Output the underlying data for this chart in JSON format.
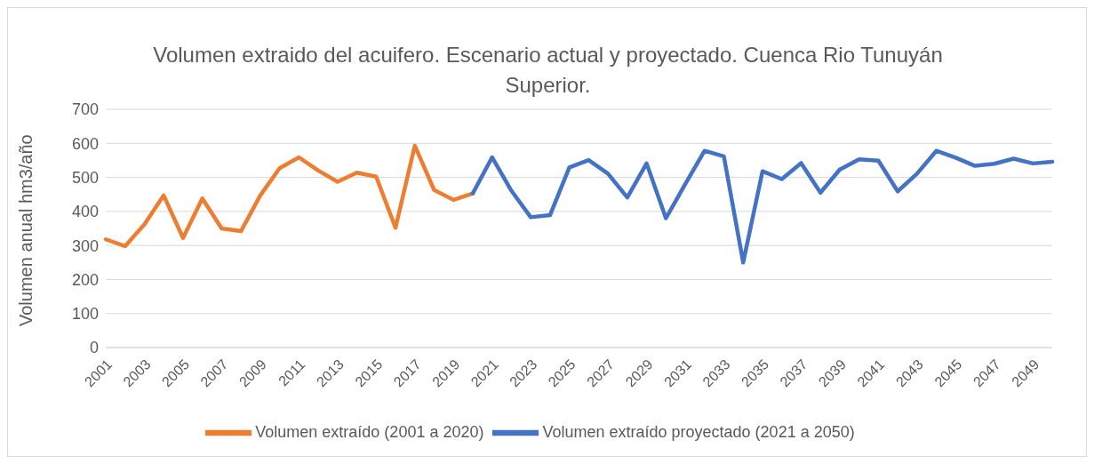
{
  "chart_data": {
    "type": "line",
    "title": "Volumen extraido del acuifero. Escenario actual y proyectado. Cuenca Rio Tunuyán Superior.",
    "ylabel": "Volumen anual hm3/año",
    "categories": [
      "2001",
      null,
      "2003",
      null,
      "2005",
      null,
      "2007",
      null,
      "2009",
      null,
      "2011",
      null,
      "2013",
      null,
      "2015",
      null,
      "2017",
      null,
      "2019",
      null,
      "2021",
      null,
      "2023",
      null,
      "2025",
      null,
      "2027",
      null,
      "2029",
      null,
      "2031",
      null,
      "2033",
      null,
      "2035",
      null,
      "2037",
      null,
      "2039",
      null,
      "2041",
      null,
      "2043",
      null,
      "2045",
      null,
      "2047",
      null,
      "2049",
      null
    ],
    "series": [
      {
        "name": "Volumen extraído (2001 a 2020)",
        "color": "#ed7d31",
        "values": [
          318,
          298,
          362,
          447,
          322,
          438,
          350,
          342,
          447,
          527,
          559,
          520,
          487,
          514,
          502,
          352,
          593,
          463,
          434,
          453,
          null,
          null,
          null,
          null,
          null,
          null,
          null,
          null,
          null,
          null,
          null,
          null,
          null,
          null,
          null,
          null,
          null,
          null,
          null,
          null,
          null,
          null,
          null,
          null,
          null,
          null,
          null,
          null,
          null,
          null
        ]
      },
      {
        "name": "Volumen extraído proyectado (2021 a 2050)",
        "color": "#4472c4",
        "values": [
          null,
          null,
          null,
          null,
          null,
          null,
          null,
          null,
          null,
          null,
          null,
          null,
          null,
          null,
          null,
          null,
          null,
          null,
          null,
          453,
          559,
          461,
          383,
          389,
          529,
          551,
          511,
          441,
          541,
          380,
          480,
          578,
          562,
          250,
          518,
          495,
          542,
          455,
          523,
          553,
          549,
          459,
          511,
          578,
          558,
          534,
          540,
          555,
          541,
          546
        ]
      }
    ],
    "ylim": [
      0,
      700
    ],
    "yticks": [
      0,
      100,
      200,
      300,
      400,
      500,
      600,
      700
    ],
    "grid": "y",
    "legend": "bottom"
  }
}
